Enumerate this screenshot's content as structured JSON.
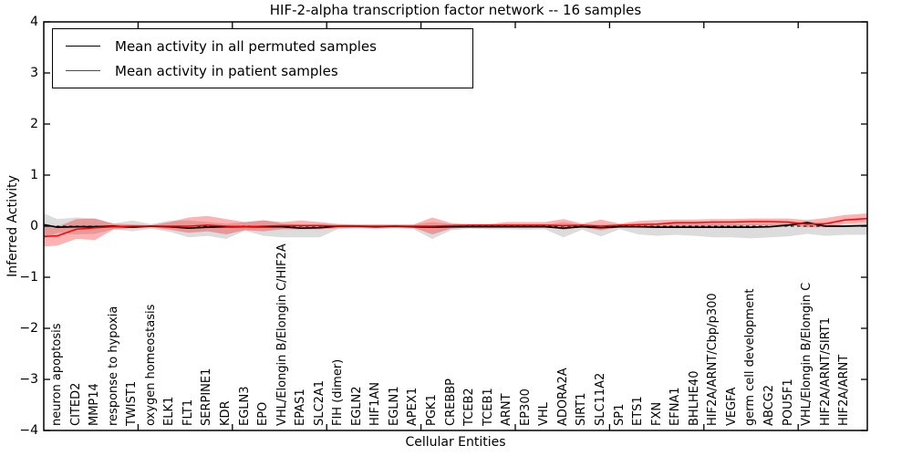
{
  "title": "HIF-2-alpha transcription factor network -- 16 samples",
  "axes": {
    "x_label": "Cellular Entities",
    "y_label": "Inferred Activity"
  },
  "legend": {
    "items": [
      {
        "label": "Mean activity in all permuted samples",
        "color": "#000000"
      },
      {
        "label": "Mean activity in patient samples",
        "color": "#ff0000"
      }
    ],
    "position": "upper-left"
  },
  "colors": {
    "permuted_line": "#000000",
    "patient_line": "#ff0000",
    "permuted_band": "rgba(128,128,128,0.28)",
    "patient_band": "rgba(255,0,0,0.30)",
    "zero_line": "#000000",
    "background": "#ffffff"
  },
  "chart_data": {
    "type": "line",
    "title": "HIF-2-alpha transcription factor network -- 16 samples",
    "xlabel": "Cellular Entities",
    "ylabel": "Inferred Activity",
    "ylim": [
      -4,
      4
    ],
    "yticks": [
      4,
      3,
      2,
      1,
      0,
      -1,
      -2,
      -3,
      -4
    ],
    "ytick_labels": [
      "4",
      "3",
      "2",
      "1",
      "0",
      "−1",
      "−2",
      "−3",
      "−4"
    ],
    "grid": false,
    "zero_line_dashed": true,
    "legend_position": "upper-left",
    "categories": [
      "neuron apoptosis",
      "CITED2",
      "MMP14",
      "response to hypoxia",
      "TWIST1",
      "oxygen homeostasis",
      "ELK1",
      "FLT1",
      "SERPINE1",
      "KDR",
      "EGLN3",
      "EPO",
      "VHL/Elongin B/Elongin C/HIF2A",
      "EPAS1",
      "SLC2A1",
      "FIH (dimer)",
      "EGLN2",
      "HIF1AN",
      "EGLN1",
      "APEX1",
      "PGK1",
      "CREBBP",
      "TCEB2",
      "TCEB1",
      "ARNT",
      "EP300",
      "VHL",
      "ADORA2A",
      "SIRT1",
      "SLC11A2",
      "SP1",
      "ETS1",
      "FXN",
      "EFNA1",
      "BHLHE40",
      "HIF2A/ARNT/Cbp/p300",
      "VEGFA",
      "germ cell development",
      "ABCG2",
      "POU5F1",
      "VHL/Elongin B/Elongin C",
      "HIF2A/ARNT/SIRT1",
      "HIF2A/ARNT"
    ],
    "series": [
      {
        "name": "Mean activity in all permuted samples",
        "color": "#000000",
        "style": "solid",
        "values": [
          -0.02,
          -0.01,
          -0.01,
          0.0,
          -0.02,
          0.0,
          -0.01,
          -0.04,
          -0.02,
          -0.01,
          -0.01,
          -0.01,
          -0.01,
          -0.04,
          -0.03,
          0.0,
          0.0,
          -0.01,
          0.0,
          -0.01,
          -0.02,
          -0.01,
          -0.01,
          -0.01,
          -0.01,
          -0.01,
          -0.01,
          -0.04,
          -0.01,
          -0.03,
          -0.01,
          -0.01,
          -0.02,
          -0.02,
          -0.02,
          -0.02,
          -0.02,
          -0.02,
          -0.01,
          0.02,
          0.07,
          0.0,
          0.0
        ]
      },
      {
        "name": "Mean activity in patient samples",
        "color": "#ff0000",
        "style": "solid",
        "values": [
          -0.19,
          -0.06,
          -0.03,
          -0.01,
          0.0,
          0.0,
          0.0,
          0.0,
          0.02,
          0.0,
          -0.01,
          0.0,
          0.01,
          0.01,
          0.01,
          0.0,
          0.0,
          0.0,
          0.0,
          0.0,
          0.0,
          0.01,
          0.02,
          0.02,
          0.02,
          0.02,
          0.02,
          0.01,
          0.02,
          0.0,
          0.02,
          0.03,
          0.04,
          0.07,
          0.07,
          0.08,
          0.08,
          0.09,
          0.09,
          0.08,
          0.04,
          0.05,
          0.12
        ]
      }
    ],
    "bands": [
      {
        "name": "permuted-samples-range",
        "color": "rgba(128,128,128,0.28)",
        "upper": [
          0.14,
          0.17,
          0.15,
          0.05,
          0.11,
          0.04,
          0.11,
          0.11,
          0.08,
          0.05,
          0.08,
          0.12,
          0.05,
          0.03,
          0.04,
          0.04,
          0.03,
          0.03,
          0.03,
          0.03,
          0.08,
          0.04,
          0.03,
          0.03,
          0.03,
          0.02,
          0.02,
          0.08,
          0.03,
          0.03,
          0.03,
          0.02,
          0.05,
          0.04,
          0.03,
          0.06,
          0.05,
          0.05,
          0.05,
          0.06,
          0.1,
          0.02,
          0.03
        ],
        "lower": [
          -0.13,
          -0.16,
          -0.15,
          -0.06,
          -0.1,
          -0.05,
          -0.11,
          -0.22,
          -0.19,
          -0.25,
          -0.09,
          -0.19,
          -0.22,
          -0.22,
          -0.22,
          -0.05,
          -0.04,
          -0.06,
          -0.04,
          -0.06,
          -0.25,
          -0.08,
          -0.05,
          -0.06,
          -0.06,
          -0.07,
          -0.06,
          -0.22,
          -0.07,
          -0.2,
          -0.06,
          -0.16,
          -0.19,
          -0.17,
          -0.19,
          -0.22,
          -0.22,
          -0.24,
          -0.22,
          -0.2,
          -0.15,
          -0.19,
          -0.17
        ]
      },
      {
        "name": "patient-samples-range",
        "color": "rgba(255,0,0,0.30)",
        "upper": [
          -0.01,
          0.14,
          0.15,
          0.05,
          0.03,
          0.02,
          0.08,
          0.17,
          0.2,
          0.14,
          0.08,
          0.11,
          0.08,
          0.11,
          0.08,
          0.04,
          0.03,
          0.03,
          0.03,
          0.03,
          0.17,
          0.06,
          0.04,
          0.04,
          0.08,
          0.08,
          0.08,
          0.14,
          0.05,
          0.13,
          0.05,
          0.1,
          0.12,
          0.13,
          0.13,
          0.14,
          0.14,
          0.15,
          0.15,
          0.15,
          0.12,
          0.16,
          0.22
        ],
        "lower": [
          -0.38,
          -0.25,
          -0.27,
          -0.06,
          -0.03,
          -0.02,
          -0.07,
          -0.13,
          -0.1,
          -0.16,
          -0.08,
          -0.1,
          -0.06,
          -0.06,
          -0.06,
          -0.04,
          -0.03,
          -0.03,
          -0.03,
          -0.03,
          -0.16,
          -0.05,
          -0.02,
          -0.01,
          -0.01,
          -0.01,
          -0.01,
          -0.07,
          -0.02,
          -0.08,
          -0.02,
          -0.03,
          -0.02,
          -0.01,
          0.0,
          0.0,
          0.0,
          0.01,
          0.02,
          0.02,
          -0.02,
          -0.02,
          0.04
        ]
      }
    ],
    "edges": {
      "left": {
        "permuted_mean": 0.03,
        "patient_mean": -0.2,
        "permuted_upper": 0.25,
        "permuted_lower": -0.25,
        "patient_upper": -0.01,
        "patient_lower": -0.4
      },
      "right": {
        "permuted_mean": 0.01,
        "patient_mean": 0.15,
        "permuted_upper": 0.07,
        "permuted_lower": -0.17,
        "patient_upper": 0.25,
        "patient_lower": 0.07
      }
    }
  }
}
